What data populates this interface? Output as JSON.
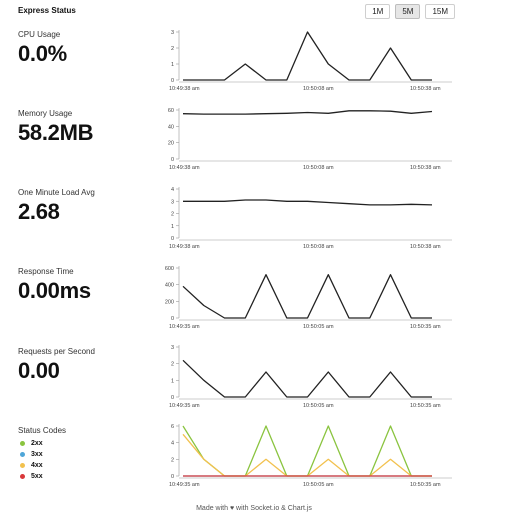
{
  "app": {
    "title": "Express Status"
  },
  "range_buttons": [
    {
      "label": "1M",
      "active": false
    },
    {
      "label": "5M",
      "active": true
    },
    {
      "label": "15M",
      "active": false
    }
  ],
  "metrics": [
    {
      "label": "CPU Usage",
      "value": "0.0%"
    },
    {
      "label": "Memory Usage",
      "value": "58.2MB"
    },
    {
      "label": "One Minute Load Avg",
      "value": "2.68"
    },
    {
      "label": "Response Time",
      "value": "0.00ms"
    },
    {
      "label": "Requests per Second",
      "value": "0.00"
    },
    {
      "label": "Status Codes",
      "value": ""
    }
  ],
  "legend": [
    {
      "label": "2xx",
      "color": "#8ac43f"
    },
    {
      "label": "3xx",
      "color": "#4fa6d8"
    },
    {
      "label": "4xx",
      "color": "#f2c14e"
    },
    {
      "label": "5xx",
      "color": "#d9383a"
    }
  ],
  "chart_data": [
    {
      "type": "line",
      "name": "cpu-usage-chart",
      "ylim": [
        0,
        3
      ],
      "yticks": [
        0,
        1,
        2,
        3
      ],
      "xticks": [
        "10:49:38 am",
        "10:50:08 am",
        "10:50:38 am"
      ],
      "x": [
        0,
        5,
        10,
        15,
        20,
        25,
        30,
        35,
        40,
        45,
        50,
        55,
        60
      ],
      "series": [
        {
          "name": "",
          "color": "#222222",
          "values": [
            0,
            0,
            0,
            1,
            0,
            0,
            3,
            1,
            0,
            0,
            2,
            0,
            0
          ]
        }
      ]
    },
    {
      "type": "line",
      "name": "memory-usage-chart",
      "ylim": [
        0,
        60
      ],
      "yticks": [
        0,
        20,
        40,
        60
      ],
      "xticks": [
        "10:49:38 am",
        "10:50:08 am",
        "10:50:38 am"
      ],
      "x": [
        0,
        5,
        10,
        15,
        20,
        25,
        30,
        35,
        40,
        45,
        50,
        55,
        60
      ],
      "series": [
        {
          "name": "",
          "color": "#222222",
          "values": [
            55.5,
            55,
            55,
            55,
            55.5,
            56,
            57,
            56,
            59,
            59,
            58.5,
            56,
            58.2
          ]
        }
      ]
    },
    {
      "type": "line",
      "name": "load-avg-chart",
      "ylim": [
        0,
        4
      ],
      "yticks": [
        0,
        1,
        2,
        3,
        4
      ],
      "xticks": [
        "10:49:38 am",
        "10:50:08 am",
        "10:50:38 am"
      ],
      "x": [
        0,
        5,
        10,
        15,
        20,
        25,
        30,
        35,
        40,
        45,
        50,
        55,
        60
      ],
      "series": [
        {
          "name": "",
          "color": "#222222",
          "values": [
            3.0,
            3.0,
            3.0,
            3.1,
            3.1,
            3.0,
            3.0,
            2.9,
            2.8,
            2.7,
            2.7,
            2.75,
            2.7
          ]
        }
      ]
    },
    {
      "type": "line",
      "name": "response-time-chart",
      "ylim": [
        0,
        600
      ],
      "yticks": [
        0,
        200,
        400,
        600
      ],
      "xticks": [
        "10:49:35 am",
        "10:50:05 am",
        "10:50:35 am"
      ],
      "x": [
        0,
        5,
        10,
        15,
        20,
        25,
        30,
        35,
        40,
        45,
        50,
        55,
        60
      ],
      "series": [
        {
          "name": "",
          "color": "#222222",
          "values": [
            380,
            150,
            0,
            0,
            520,
            0,
            0,
            520,
            0,
            0,
            520,
            0,
            0
          ]
        }
      ]
    },
    {
      "type": "line",
      "name": "requests-per-second-chart",
      "ylim": [
        0,
        3
      ],
      "yticks": [
        0,
        1,
        2,
        3
      ],
      "xticks": [
        "10:49:35 am",
        "10:50:05 am",
        "10:50:35 am"
      ],
      "x": [
        0,
        5,
        10,
        15,
        20,
        25,
        30,
        35,
        40,
        45,
        50,
        55,
        60
      ],
      "series": [
        {
          "name": "",
          "color": "#222222",
          "values": [
            2.2,
            1,
            0,
            0,
            1.5,
            0,
            0,
            1.5,
            0,
            0,
            1.5,
            0,
            0
          ]
        }
      ]
    },
    {
      "type": "line",
      "name": "status-codes-chart",
      "ylim": [
        0,
        6
      ],
      "yticks": [
        0,
        2,
        4,
        6
      ],
      "xticks": [
        "10:49:35 am",
        "10:50:05 am",
        "10:50:35 am"
      ],
      "x": [
        0,
        5,
        10,
        15,
        20,
        25,
        30,
        35,
        40,
        45,
        50,
        55,
        60
      ],
      "series": [
        {
          "name": "2xx",
          "color": "#8ac43f",
          "values": [
            6,
            2,
            0,
            0,
            6,
            0,
            0,
            6,
            0,
            0,
            6,
            0,
            0
          ]
        },
        {
          "name": "3xx",
          "color": "#4fa6d8",
          "values": [
            0,
            0,
            0,
            0,
            0,
            0,
            0,
            0,
            0,
            0,
            0,
            0,
            0
          ]
        },
        {
          "name": "4xx",
          "color": "#f2c14e",
          "values": [
            5,
            2,
            0,
            0,
            2,
            0,
            0,
            2,
            0,
            0,
            2,
            0,
            0
          ]
        },
        {
          "name": "5xx",
          "color": "#d9383a",
          "values": [
            0,
            0,
            0,
            0,
            0,
            0,
            0,
            0,
            0,
            0,
            0,
            0,
            0
          ]
        }
      ]
    }
  ],
  "footer": {
    "text": "Made with ♥ with Socket.io & Chart.js"
  }
}
